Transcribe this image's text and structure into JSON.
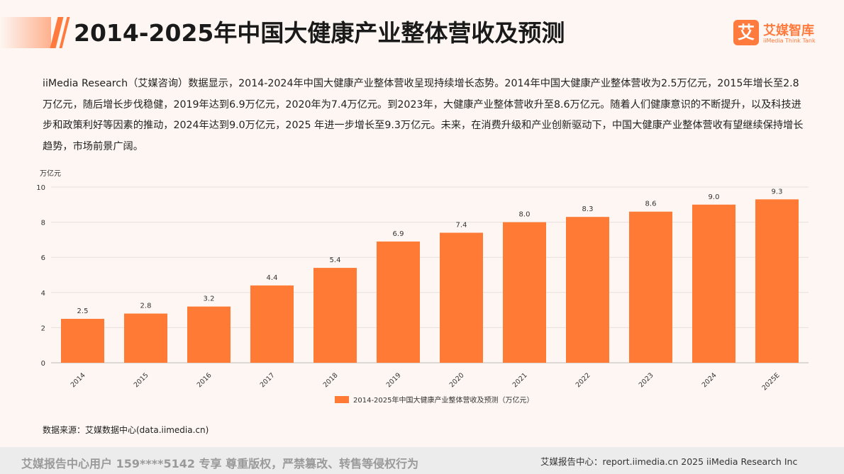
{
  "header": {
    "title": "2014-2025年中国大健康产业整体营收及预测",
    "logo_cn": "艾媒智库",
    "logo_en": "iiMedia Think Tank",
    "logo_mark": "艾"
  },
  "description": "iiMedia Research（艾媒咨询）数据显示，2014-2024年中国大健康产业整体营收呈现持续增长态势。2014年中国大健康产业整体营收为2.5万亿元，2015年增长至2.8万亿元，随后增长步伐稳健，2019年达到6.9万亿元，2020年为7.4万亿元。到2023年，大健康产业整体营收升至8.6万亿元。随着人们健康意识的不断提升，以及科技进步和政策利好等因素的推动，2024年达到9.0万亿元，2025 年进一步增长至9.3万亿元。未来，在消费升级和产业创新驱动下，中国大健康产业整体营收有望继续保持增长趋势，市场前景广阔。",
  "chart_data": {
    "type": "bar",
    "title": "",
    "ylabel": "万亿元",
    "xlabel": "",
    "categories": [
      "2014",
      "2015",
      "2016",
      "2017",
      "2018",
      "2019",
      "2020",
      "2021",
      "2022",
      "2023",
      "2024",
      "2025E"
    ],
    "series": [
      {
        "name": "2014-2025年中国大健康产业整体营收及预测（万亿元）",
        "values": [
          2.5,
          2.8,
          3.2,
          4.4,
          5.4,
          6.9,
          7.4,
          8.0,
          8.3,
          8.6,
          9.0,
          9.3
        ],
        "labels": [
          "2.5",
          "2.8",
          "3.2",
          "4.4",
          "5.4",
          "6.9",
          "7.4",
          "8.0",
          "8.3",
          "8.6",
          "9.0",
          "9.3"
        ],
        "color": "#ff7a35"
      }
    ],
    "ylim": [
      0,
      10
    ],
    "yticks": [
      0,
      2,
      4,
      6,
      8,
      10
    ],
    "grid": true,
    "legend": "bottom-center"
  },
  "source": "数据来源：艾媒数据中心(data.iimedia.cn)",
  "footer": {
    "left": "艾媒报告中心用户 159****5142 专享 尊重版权，严禁篡改、转售等侵权行为",
    "right": "艾媒报告中心：report.iimedia.cn  2025 iiMedia Research Inc"
  },
  "colors": {
    "accent": "#ff7a3d",
    "bar": "#ff7a35",
    "background": "#fdf6f2",
    "footer_bg": "#ececec"
  }
}
